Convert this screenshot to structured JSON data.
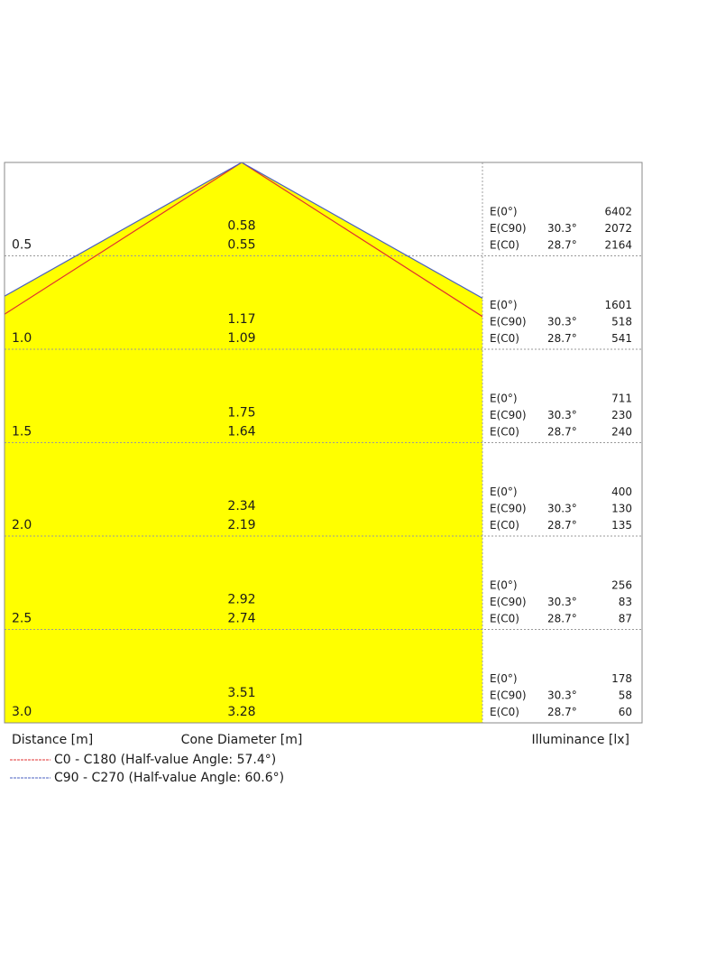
{
  "chart_data": {
    "type": "area",
    "title": "",
    "xlabel": "Distance [m]",
    "diameter_label": "Cone Diameter [m]",
    "illuminance_label": "Illuminance [lx]",
    "distances": [
      "0.5",
      "1.0",
      "1.5",
      "2.0",
      "2.5",
      "3.0"
    ],
    "ylim": [
      0,
      3.0
    ],
    "cone_diameter": {
      "C90_C270": [
        "0.58",
        "1.17",
        "1.75",
        "2.34",
        "2.92",
        "3.51"
      ],
      "C0_C180": [
        "0.55",
        "1.09",
        "1.64",
        "2.19",
        "2.74",
        "3.28"
      ]
    },
    "illuminance_rows": [
      {
        "label": "E(0°)",
        "angle": "",
        "key": "E0"
      },
      {
        "label": "E(C90)",
        "angle": "30.3°",
        "key": "EC90"
      },
      {
        "label": "E(C0)",
        "angle": "28.7°",
        "key": "EC0"
      }
    ],
    "illuminance": {
      "E0": [
        "6402",
        "1601",
        "711",
        "400",
        "256",
        "178"
      ],
      "EC90": [
        "2072",
        "518",
        "230",
        "130",
        "83",
        "58"
      ],
      "EC0": [
        "2164",
        "541",
        "240",
        "135",
        "87",
        "60"
      ]
    },
    "series": [
      {
        "name": "C0 - C180 (Half-value Angle: 57.4°)",
        "half_angle_deg": 57.4,
        "color": "#e03030"
      },
      {
        "name": "C90 - C270 (Half-value Angle: 60.6°)",
        "half_angle_deg": 60.6,
        "color": "#4a5fc0"
      }
    ],
    "fill_color": "#ffff00",
    "grid": true,
    "legend_position": "bottom-left"
  }
}
